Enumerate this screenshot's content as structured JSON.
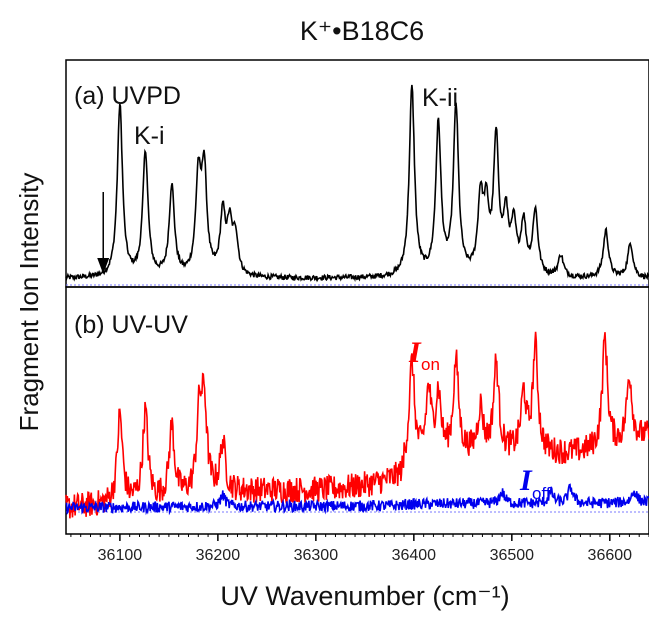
{
  "chart_data": [
    {
      "type": "line",
      "panel_label": "(a) UVPD",
      "xlabel": "UV Wavenumber (cm⁻¹)",
      "ylabel": "Fragment Ion Intensity",
      "title": "K⁺•B18C6",
      "xlim": [
        36045,
        36640
      ],
      "xticks": [
        36100,
        36200,
        36300,
        36400,
        36500,
        36600
      ],
      "annotations": [
        "K-i",
        "K-ii"
      ],
      "arrow_at_x": 36083,
      "series": [
        {
          "color": "#000000",
          "baseline": 0.03,
          "noise": 0.012,
          "peaks": [
            {
              "x": 36100,
              "h": 0.8
            },
            {
              "x": 36126,
              "h": 0.58
            },
            {
              "x": 36153,
              "h": 0.42
            },
            {
              "x": 36180,
              "h": 0.44
            },
            {
              "x": 36186,
              "h": 0.48
            },
            {
              "x": 36205,
              "h": 0.28
            },
            {
              "x": 36212,
              "h": 0.22
            },
            {
              "x": 36218,
              "h": 0.18
            },
            {
              "x": 36398,
              "h": 0.88
            },
            {
              "x": 36425,
              "h": 0.7
            },
            {
              "x": 36443,
              "h": 0.78
            },
            {
              "x": 36468,
              "h": 0.34
            },
            {
              "x": 36474,
              "h": 0.28
            },
            {
              "x": 36484,
              "h": 0.62
            },
            {
              "x": 36494,
              "h": 0.26
            },
            {
              "x": 36502,
              "h": 0.22
            },
            {
              "x": 36512,
              "h": 0.24
            },
            {
              "x": 36524,
              "h": 0.3
            },
            {
              "x": 36550,
              "h": 0.1
            },
            {
              "x": 36596,
              "h": 0.22
            },
            {
              "x": 36621,
              "h": 0.16
            }
          ]
        }
      ]
    },
    {
      "type": "line",
      "panel_label": "(b) UV-UV",
      "xlim": [
        36045,
        36640
      ],
      "series": [
        {
          "name": "I_on",
          "label_main": "I",
          "label_sub": "on",
          "color": "#ff0000",
          "baseline": 0.02,
          "slope": 0.4,
          "noise": 0.06,
          "peaks": [
            {
              "x": 36100,
              "h": 0.4
            },
            {
              "x": 36126,
              "h": 0.4
            },
            {
              "x": 36153,
              "h": 0.32
            },
            {
              "x": 36181,
              "h": 0.34
            },
            {
              "x": 36186,
              "h": 0.4
            },
            {
              "x": 36205,
              "h": 0.22
            },
            {
              "x": 36398,
              "h": 0.45
            },
            {
              "x": 36415,
              "h": 0.3
            },
            {
              "x": 36425,
              "h": 0.28
            },
            {
              "x": 36443,
              "h": 0.42
            },
            {
              "x": 36468,
              "h": 0.2
            },
            {
              "x": 36484,
              "h": 0.4
            },
            {
              "x": 36512,
              "h": 0.26
            },
            {
              "x": 36524,
              "h": 0.48
            },
            {
              "x": 36595,
              "h": 0.5
            },
            {
              "x": 36620,
              "h": 0.3
            }
          ]
        },
        {
          "name": "I_off",
          "label_main": "I",
          "label_sub": "off",
          "color": "#0000ee",
          "baseline": 0.02,
          "slope": 0.03,
          "noise": 0.025,
          "peaks": [
            {
              "x": 36205,
              "h": 0.05
            },
            {
              "x": 36490,
              "h": 0.05
            },
            {
              "x": 36540,
              "h": 0.05
            },
            {
              "x": 36560,
              "h": 0.07
            },
            {
              "x": 36625,
              "h": 0.05
            }
          ]
        }
      ]
    }
  ]
}
